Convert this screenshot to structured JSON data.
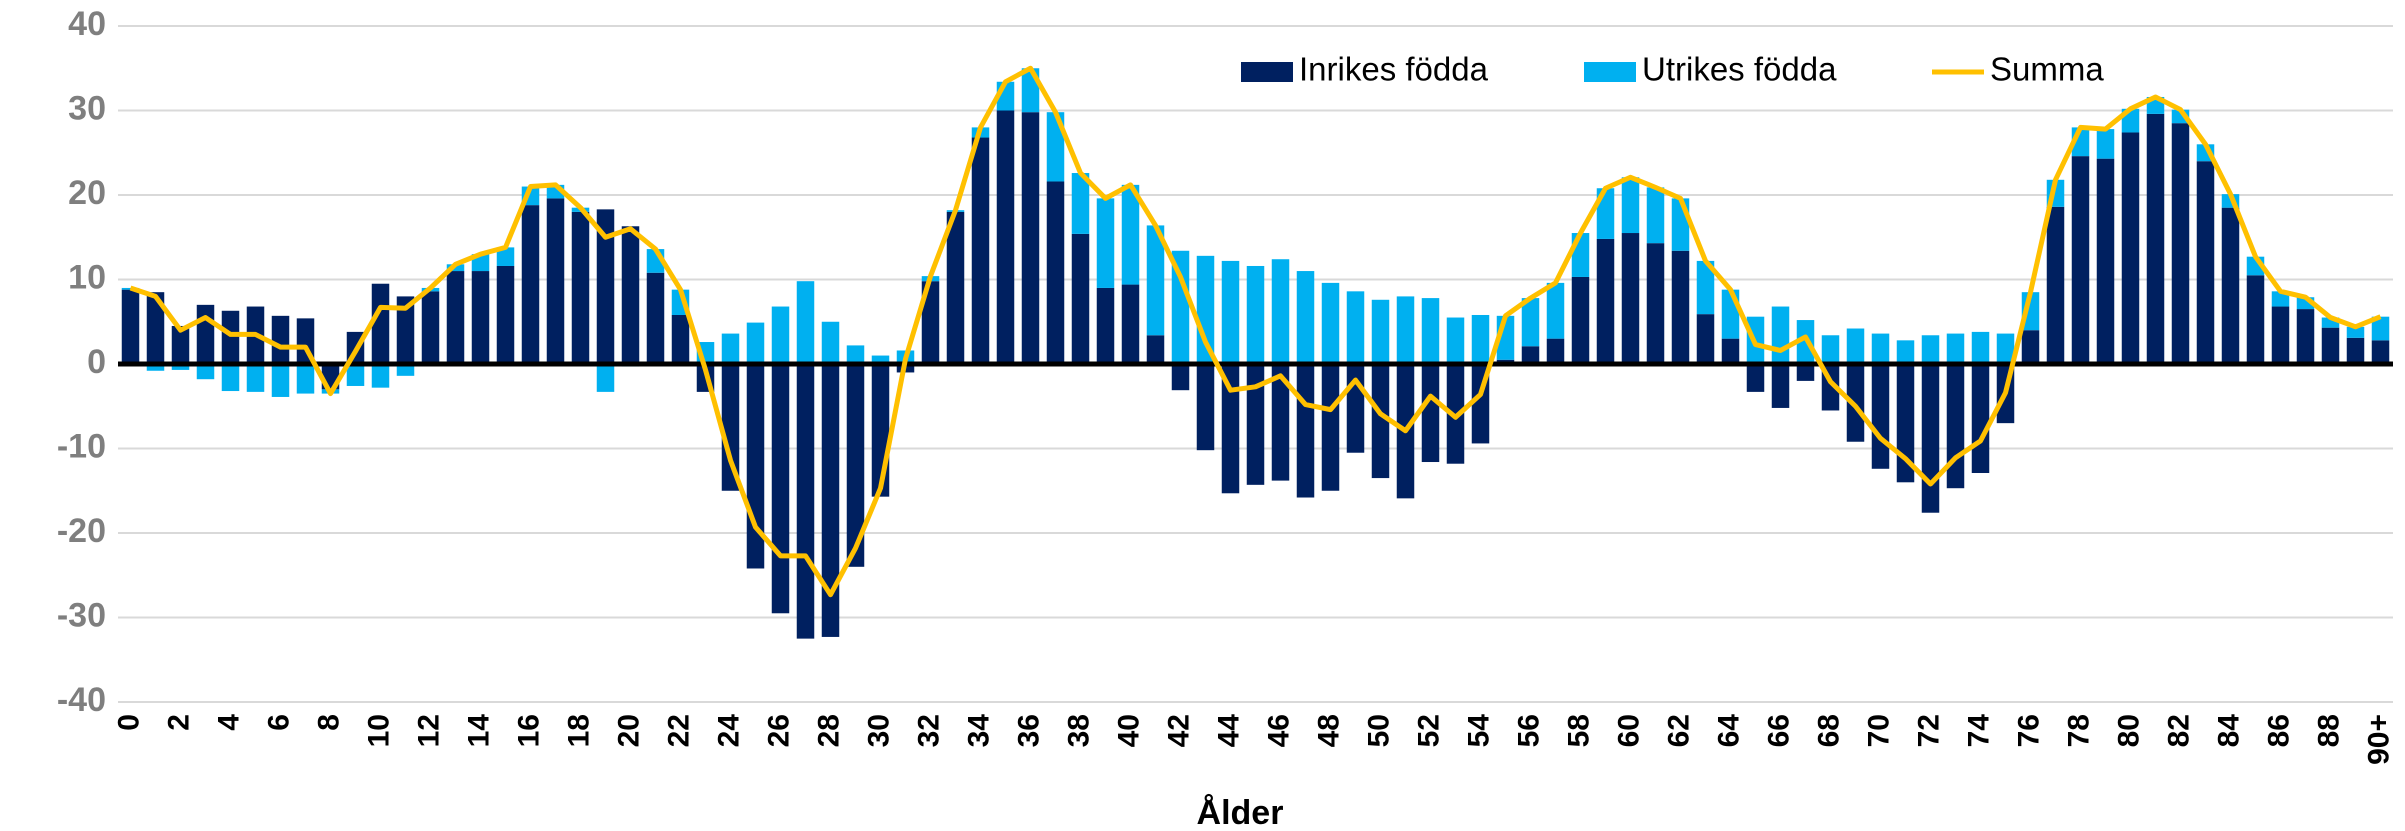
{
  "chart_data": {
    "type": "bar",
    "stacked": true,
    "xlabel": "Ålder",
    "categories": [
      "0",
      null,
      "2",
      null,
      "4",
      null,
      "6",
      null,
      "8",
      null,
      "10",
      null,
      "12",
      null,
      "14",
      null,
      "16",
      null,
      "18",
      null,
      "20",
      null,
      "22",
      null,
      "24",
      null,
      "26",
      null,
      "28",
      null,
      "30",
      null,
      "32",
      null,
      "34",
      null,
      "36",
      null,
      "38",
      null,
      "40",
      null,
      "42",
      null,
      "44",
      null,
      "46",
      null,
      "48",
      null,
      "50",
      null,
      "52",
      null,
      "54",
      null,
      "56",
      null,
      "58",
      null,
      "60",
      null,
      "62",
      null,
      "64",
      null,
      "66",
      null,
      "68",
      null,
      "70",
      null,
      "72",
      null,
      "74",
      null,
      "76",
      null,
      "78",
      null,
      "80",
      null,
      "82",
      null,
      "84",
      null,
      "86",
      null,
      "88",
      null,
      "90+"
    ],
    "series": [
      {
        "name": "Inrikes födda",
        "color": "#002060",
        "type": "bar",
        "values": [
          8.8,
          8.5,
          4.5,
          7.0,
          6.3,
          6.8,
          5.7,
          5.4,
          -3.0,
          3.8,
          9.5,
          8.0,
          8.6,
          11.0,
          11.0,
          11.6,
          18.8,
          19.6,
          18.0,
          18.3,
          16.3,
          10.8,
          5.8,
          -3.3,
          -15.0,
          -24.2,
          -29.5,
          -32.5,
          -32.3,
          -24.0,
          -15.7,
          -1.0,
          9.8,
          18.0,
          26.8,
          30.0,
          29.8,
          21.6,
          15.4,
          9.0,
          9.4,
          3.4,
          -3.1,
          -10.2,
          -15.3,
          -14.3,
          -13.8,
          -15.8,
          -15.0,
          -10.5,
          -13.5,
          -15.9,
          -11.6,
          -11.8,
          -9.4,
          0.5,
          2.1,
          3.0,
          10.3,
          14.8,
          15.5,
          14.3,
          13.4,
          5.9,
          3.0,
          -3.3,
          -5.2,
          -2.0,
          -5.5,
          -9.2,
          -12.4,
          -14.0,
          -17.6,
          -14.7,
          -12.9,
          -7.0,
          4.0,
          18.6,
          24.6,
          24.3,
          27.4,
          29.6,
          28.5,
          24.0,
          18.5,
          10.5,
          6.8,
          6.5,
          4.3,
          3.1,
          2.8
        ]
      },
      {
        "name": "Utrikes födda",
        "color": "#00b0f0",
        "type": "bar",
        "values": [
          0.2,
          -0.8,
          -0.7,
          -1.8,
          -3.2,
          -3.3,
          -3.9,
          -3.5,
          -0.5,
          -2.6,
          -2.8,
          -1.4,
          0.4,
          0.8,
          2.0,
          2.2,
          2.2,
          1.6,
          0.5,
          -3.3,
          -0.3,
          2.8,
          3.0,
          2.6,
          3.6,
          4.9,
          6.8,
          9.8,
          5.0,
          2.2,
          1.0,
          1.6,
          0.6,
          0.2,
          1.2,
          3.4,
          5.2,
          8.2,
          7.2,
          10.6,
          11.8,
          13.0,
          13.4,
          12.8,
          12.2,
          11.6,
          12.4,
          11.0,
          9.6,
          8.6,
          7.6,
          8.0,
          7.8,
          5.5,
          5.8,
          5.2,
          5.7,
          6.6,
          5.2,
          6.0,
          6.6,
          6.6,
          6.2,
          6.3,
          5.8,
          5.6,
          6.8,
          5.2,
          3.4,
          4.2,
          3.6,
          2.8,
          3.4,
          3.6,
          3.8,
          3.6,
          4.5,
          3.2,
          3.4,
          3.5,
          2.8,
          2.0,
          1.6,
          2.0,
          1.6,
          2.2,
          1.8,
          1.4,
          1.2,
          1.3,
          2.8
        ]
      },
      {
        "name": "Summa",
        "color": "#ffc000",
        "type": "line",
        "values": [
          9,
          8,
          4,
          5.5,
          3.5,
          3.5,
          2,
          2,
          -3.5,
          1.5,
          6.7,
          6.6,
          9,
          11.8,
          13,
          13.8,
          21,
          21.2,
          18.5,
          15,
          16,
          13.6,
          8.8,
          -0.7,
          -11.4,
          -19.3,
          -22.7,
          -22.7,
          -27.3,
          -21.8,
          -14.7,
          0.6,
          10.4,
          18.2,
          28,
          33.4,
          35,
          29.8,
          22.6,
          19.6,
          21.2,
          16.4,
          10.3,
          2.6,
          -3.1,
          -2.7,
          -1.4,
          -4.8,
          -5.4,
          -1.9,
          -5.9,
          -7.9,
          -3.8,
          -6.3,
          -3.6,
          5.7,
          7.8,
          9.6,
          15.5,
          20.8,
          22.1,
          20.9,
          19.6,
          12.2,
          8.8,
          2.3,
          1.6,
          3.2,
          -2.1,
          -5.0,
          -8.8,
          -11.2,
          -14.2,
          -11.1,
          -9.1,
          -3.4,
          8.5,
          21.8,
          28.0,
          27.8,
          30.2,
          31.6,
          30.1,
          26.0,
          20.1,
          12.7,
          8.6,
          7.9,
          5.5,
          4.4,
          5.6
        ]
      }
    ],
    "ylim": [
      -40,
      40
    ],
    "yticks": [
      -40,
      -30,
      -20,
      -10,
      0,
      10,
      20,
      30,
      40
    ],
    "grid": true,
    "legend": "top"
  }
}
